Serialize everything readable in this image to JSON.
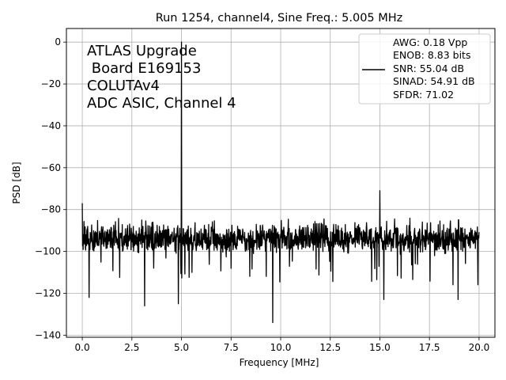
{
  "chart_data": {
    "type": "line",
    "title": "Run 1254, channel4, Sine Freq.: 5.005 MHz",
    "xlabel": "Frequency [MHz]",
    "ylabel": "PSD [dB]",
    "xlim": [
      -0.8,
      20.8
    ],
    "ylim": [
      -141,
      6.5
    ],
    "xticks": [
      0.0,
      2.5,
      5.0,
      7.5,
      10.0,
      12.5,
      15.0,
      17.5,
      20.0
    ],
    "xtick_labels": [
      "0.0",
      "2.5",
      "5.0",
      "7.5",
      "10.0",
      "12.5",
      "15.0",
      "17.5",
      "20.0"
    ],
    "yticks": [
      0,
      -20,
      -40,
      -60,
      -80,
      -100,
      -120,
      -140
    ],
    "ytick_labels": [
      "0",
      "−20",
      "−40",
      "−60",
      "−80",
      "−100",
      "−120",
      "−140"
    ],
    "grid": true,
    "line_color": "#000000",
    "annotation_lines": [
      "ATLAS Upgrade",
      " Board E169153",
      "COLUTAv4",
      "ADC ASIC, Channel 4"
    ],
    "legend": {
      "placement": "top-right",
      "lines": [
        "AWG: 0.18 Vpp",
        "ENOB: 8.83 bits",
        "SNR: 55.04 dB",
        "SINAD: 54.91 dB",
        "SFDR: 71.02"
      ]
    },
    "series": [
      {
        "noise_floor_db": -94,
        "x_range": [
          0.0,
          20.0
        ],
        "peaks": [
          {
            "x": 0.0,
            "y": -77
          },
          {
            "x": 5.005,
            "y": 0
          },
          {
            "x": 15.0,
            "y": -71
          },
          {
            "x": 9.6,
            "y": -134
          },
          {
            "x": 3.15,
            "y": -126
          },
          {
            "x": 0.35,
            "y": -122
          },
          {
            "x": 4.85,
            "y": -125
          },
          {
            "x": 15.2,
            "y": -123
          },
          {
            "x": 18.95,
            "y": -123
          }
        ]
      }
    ]
  }
}
